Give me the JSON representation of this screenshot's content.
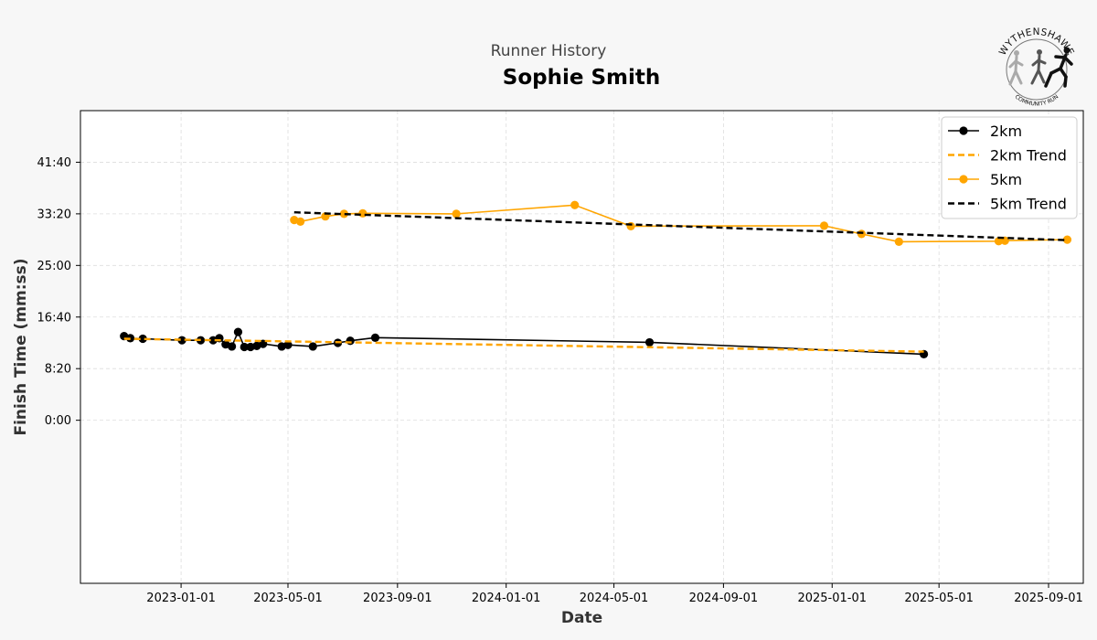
{
  "header": {
    "supertitle": "Runner History",
    "title": "Sophie Smith"
  },
  "logo": {
    "text_top": "WYTHENSHAWE",
    "text_bottom": "COMMUNITY RUN",
    "icon": "runners-logo-icon"
  },
  "colors": {
    "series_2km": "#000000",
    "series_5km": "#FFA500",
    "trend_2km": "#FFA500",
    "trend_5km": "#000000",
    "background": "#f7f7f7",
    "plot_background": "#ffffff",
    "grid": "#dddddd"
  },
  "chart_data": {
    "type": "line",
    "xlabel": "Date",
    "ylabel": "Finish Time (mm:ss)",
    "xlim": [
      "2022-09-10",
      "2025-10-10"
    ],
    "ylim": [
      -1580,
      3000
    ],
    "x_ticks": [
      "2023-01-01",
      "2023-05-01",
      "2023-09-01",
      "2024-01-01",
      "2024-05-01",
      "2024-09-01",
      "2025-01-01",
      "2025-05-01",
      "2025-09-01"
    ],
    "y_ticks": [
      0,
      500,
      1000,
      1500,
      2000,
      2500
    ],
    "y_tick_labels": [
      "0:00",
      "8:20",
      "16:40",
      "25:00",
      "33:20",
      "41:40"
    ],
    "grid": true,
    "legend_position": "top-right",
    "series": [
      {
        "name": "2km",
        "style": "line-markers",
        "color": "#000000",
        "points": [
          [
            "2022-10-29",
            815
          ],
          [
            "2022-11-05",
            795
          ],
          [
            "2022-11-19",
            790
          ],
          [
            "2023-01-02",
            775
          ],
          [
            "2023-01-23",
            775
          ],
          [
            "2023-02-06",
            775
          ],
          [
            "2023-02-13",
            795
          ],
          [
            "2023-02-20",
            735
          ],
          [
            "2023-02-27",
            715
          ],
          [
            "2023-03-06",
            855
          ],
          [
            "2023-03-13",
            710
          ],
          [
            "2023-03-20",
            710
          ],
          [
            "2023-03-27",
            720
          ],
          [
            "2023-04-03",
            740
          ],
          [
            "2023-04-24",
            715
          ],
          [
            "2023-05-01",
            730
          ],
          [
            "2023-05-29",
            715
          ],
          [
            "2023-06-26",
            750
          ],
          [
            "2023-07-10",
            770
          ],
          [
            "2023-08-07",
            800
          ],
          [
            "2024-06-10",
            755
          ],
          [
            "2025-04-14",
            640
          ]
        ]
      },
      {
        "name": "2km Trend",
        "style": "dashed",
        "color": "#FFA500",
        "points": [
          [
            "2022-10-29",
            790
          ],
          [
            "2025-04-14",
            665
          ]
        ]
      },
      {
        "name": "5km",
        "style": "line-markers",
        "color": "#FFA500",
        "points": [
          [
            "2023-05-08",
            1940
          ],
          [
            "2023-05-15",
            1925
          ],
          [
            "2023-06-12",
            1975
          ],
          [
            "2023-07-03",
            2000
          ],
          [
            "2023-07-24",
            2005
          ],
          [
            "2023-11-06",
            2000
          ],
          [
            "2024-03-18",
            2085
          ],
          [
            "2024-05-20",
            1880
          ],
          [
            "2024-12-23",
            1885
          ],
          [
            "2025-02-03",
            1805
          ],
          [
            "2025-03-17",
            1730
          ],
          [
            "2025-07-07",
            1735
          ],
          [
            "2025-07-14",
            1740
          ],
          [
            "2025-09-22",
            1750
          ]
        ]
      },
      {
        "name": "5km Trend",
        "style": "dashed",
        "color": "#000000",
        "points": [
          [
            "2023-05-08",
            2015
          ],
          [
            "2025-09-22",
            1745
          ]
        ]
      }
    ]
  }
}
